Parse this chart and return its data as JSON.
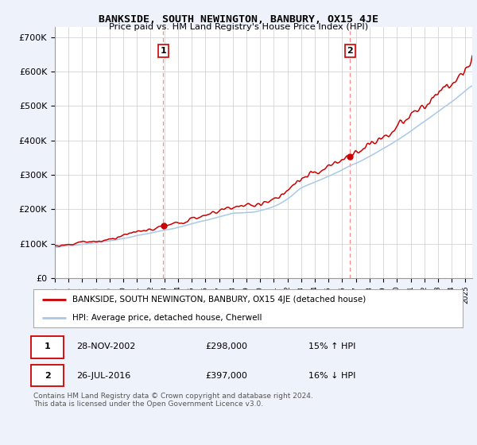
{
  "title": "BANKSIDE, SOUTH NEWINGTON, BANBURY, OX15 4JE",
  "subtitle": "Price paid vs. HM Land Registry's House Price Index (HPI)",
  "ylabel_ticks": [
    "£0",
    "£100K",
    "£200K",
    "£300K",
    "£400K",
    "£500K",
    "£600K",
    "£700K"
  ],
  "ytick_vals": [
    0,
    100000,
    200000,
    300000,
    400000,
    500000,
    600000,
    700000
  ],
  "ylim": [
    0,
    730000
  ],
  "xlim_start": 1995.0,
  "xlim_end": 2025.5,
  "sale1_x": 2002.91,
  "sale1_y": 298000,
  "sale1_label": "1",
  "sale2_x": 2016.57,
  "sale2_y": 397000,
  "sale2_label": "2",
  "legend_line1": "BANKSIDE, SOUTH NEWINGTON, BANBURY, OX15 4JE (detached house)",
  "legend_line2": "HPI: Average price, detached house, Cherwell",
  "footer": "Contains HM Land Registry data © Crown copyright and database right 2024.\nThis data is licensed under the Open Government Licence v3.0.",
  "hpi_color": "#aac8e8",
  "price_color": "#cc0000",
  "sale_marker_color": "#cc0000",
  "dashed_line_color": "#ff8888",
  "background_color": "#eef2fa",
  "plot_bg_color": "#ffffff",
  "grid_color": "#cccccc",
  "n_points": 366
}
